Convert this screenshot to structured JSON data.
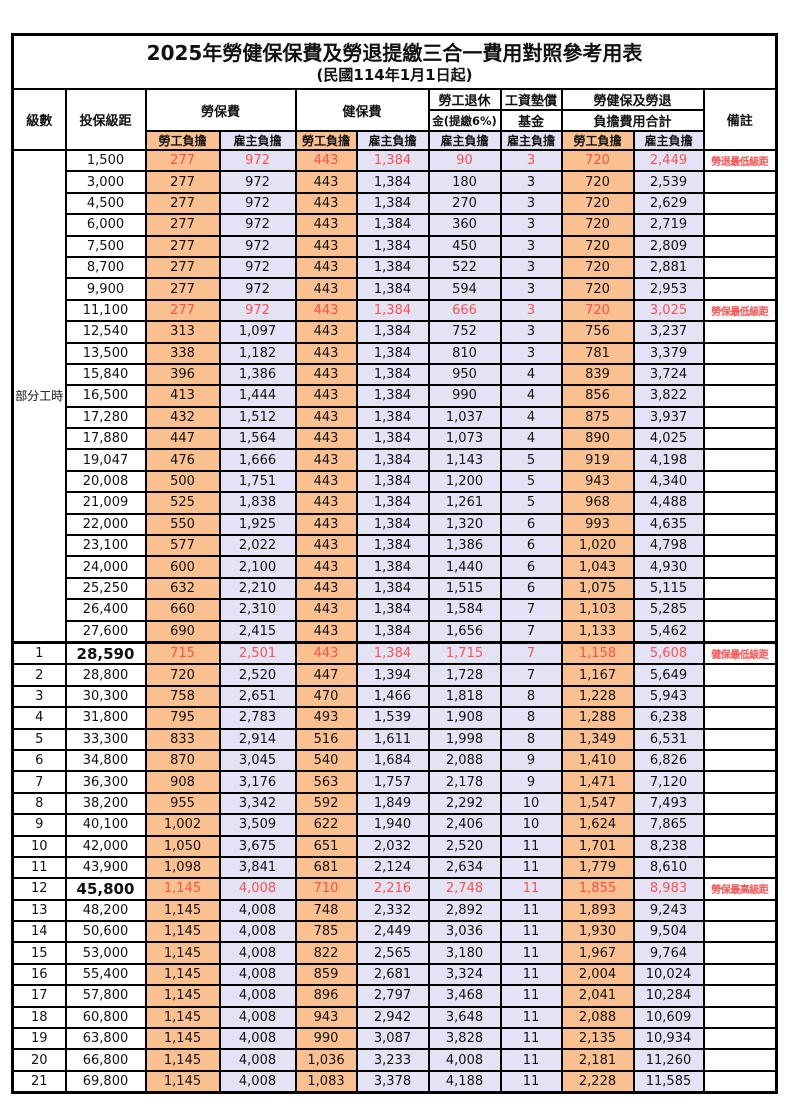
{
  "title": {
    "main": "2025年勞健保保費及勞退提繳三合一費用對照參考用表",
    "sub": "(民國114年1月1日起)"
  },
  "colors": {
    "employee_bg": "#FAC090",
    "employer_bg": "#E4E3F5",
    "highlight_text": "#FF5050",
    "border": "#000000"
  },
  "header": {
    "level": "級數",
    "bracket": "投保級距",
    "labor_fee": "勞保費",
    "health_fee": "健保費",
    "pension_line1": "勞工退休",
    "pension_line2": "金(提繳6%)",
    "wage_fund_line1": "工資墊償",
    "wage_fund_line2": "基金",
    "total_line1": "勞健保及勞退",
    "total_line2": "負擔費用合計",
    "note": "備註",
    "employee": "勞工負擔",
    "employer": "雇主負擔"
  },
  "table": {
    "part_time_label": "部分工時",
    "part_time_row_count": 23,
    "rows": [
      {
        "br": "1,500",
        "le": "277",
        "lr": "972",
        "he": "443",
        "hr": "1,384",
        "pe": "90",
        "wf": "3",
        "te": "720",
        "ter": "2,449",
        "nt": "勞退最低級距",
        "hl": true
      },
      {
        "br": "3,000",
        "le": "277",
        "lr": "972",
        "he": "443",
        "hr": "1,384",
        "pe": "180",
        "wf": "3",
        "te": "720",
        "ter": "2,539",
        "nt": ""
      },
      {
        "br": "4,500",
        "le": "277",
        "lr": "972",
        "he": "443",
        "hr": "1,384",
        "pe": "270",
        "wf": "3",
        "te": "720",
        "ter": "2,629",
        "nt": ""
      },
      {
        "br": "6,000",
        "le": "277",
        "lr": "972",
        "he": "443",
        "hr": "1,384",
        "pe": "360",
        "wf": "3",
        "te": "720",
        "ter": "2,719",
        "nt": ""
      },
      {
        "br": "7,500",
        "le": "277",
        "lr": "972",
        "he": "443",
        "hr": "1,384",
        "pe": "450",
        "wf": "3",
        "te": "720",
        "ter": "2,809",
        "nt": ""
      },
      {
        "br": "8,700",
        "le": "277",
        "lr": "972",
        "he": "443",
        "hr": "1,384",
        "pe": "522",
        "wf": "3",
        "te": "720",
        "ter": "2,881",
        "nt": ""
      },
      {
        "br": "9,900",
        "le": "277",
        "lr": "972",
        "he": "443",
        "hr": "1,384",
        "pe": "594",
        "wf": "3",
        "te": "720",
        "ter": "2,953",
        "nt": ""
      },
      {
        "br": "11,100",
        "le": "277",
        "lr": "972",
        "he": "443",
        "hr": "1,384",
        "pe": "666",
        "wf": "3",
        "te": "720",
        "ter": "3,025",
        "nt": "勞保最低級距",
        "hl": true
      },
      {
        "br": "12,540",
        "le": "313",
        "lr": "1,097",
        "he": "443",
        "hr": "1,384",
        "pe": "752",
        "wf": "3",
        "te": "756",
        "ter": "3,237",
        "nt": ""
      },
      {
        "br": "13,500",
        "le": "338",
        "lr": "1,182",
        "he": "443",
        "hr": "1,384",
        "pe": "810",
        "wf": "3",
        "te": "781",
        "ter": "3,379",
        "nt": ""
      },
      {
        "br": "15,840",
        "le": "396",
        "lr": "1,386",
        "he": "443",
        "hr": "1,384",
        "pe": "950",
        "wf": "4",
        "te": "839",
        "ter": "3,724",
        "nt": ""
      },
      {
        "br": "16,500",
        "le": "413",
        "lr": "1,444",
        "he": "443",
        "hr": "1,384",
        "pe": "990",
        "wf": "4",
        "te": "856",
        "ter": "3,822",
        "nt": ""
      },
      {
        "br": "17,280",
        "le": "432",
        "lr": "1,512",
        "he": "443",
        "hr": "1,384",
        "pe": "1,037",
        "wf": "4",
        "te": "875",
        "ter": "3,937",
        "nt": ""
      },
      {
        "br": "17,880",
        "le": "447",
        "lr": "1,564",
        "he": "443",
        "hr": "1,384",
        "pe": "1,073",
        "wf": "4",
        "te": "890",
        "ter": "4,025",
        "nt": ""
      },
      {
        "br": "19,047",
        "le": "476",
        "lr": "1,666",
        "he": "443",
        "hr": "1,384",
        "pe": "1,143",
        "wf": "5",
        "te": "919",
        "ter": "4,198",
        "nt": ""
      },
      {
        "br": "20,008",
        "le": "500",
        "lr": "1,751",
        "he": "443",
        "hr": "1,384",
        "pe": "1,200",
        "wf": "5",
        "te": "943",
        "ter": "4,340",
        "nt": ""
      },
      {
        "br": "21,009",
        "le": "525",
        "lr": "1,838",
        "he": "443",
        "hr": "1,384",
        "pe": "1,261",
        "wf": "5",
        "te": "968",
        "ter": "4,488",
        "nt": ""
      },
      {
        "br": "22,000",
        "le": "550",
        "lr": "1,925",
        "he": "443",
        "hr": "1,384",
        "pe": "1,320",
        "wf": "6",
        "te": "993",
        "ter": "4,635",
        "nt": ""
      },
      {
        "br": "23,100",
        "le": "577",
        "lr": "2,022",
        "he": "443",
        "hr": "1,384",
        "pe": "1,386",
        "wf": "6",
        "te": "1,020",
        "ter": "4,798",
        "nt": ""
      },
      {
        "br": "24,000",
        "le": "600",
        "lr": "2,100",
        "he": "443",
        "hr": "1,384",
        "pe": "1,440",
        "wf": "6",
        "te": "1,043",
        "ter": "4,930",
        "nt": ""
      },
      {
        "br": "25,250",
        "le": "632",
        "lr": "2,210",
        "he": "443",
        "hr": "1,384",
        "pe": "1,515",
        "wf": "6",
        "te": "1,075",
        "ter": "5,115",
        "nt": ""
      },
      {
        "br": "26,400",
        "le": "660",
        "lr": "2,310",
        "he": "443",
        "hr": "1,384",
        "pe": "1,584",
        "wf": "7",
        "te": "1,103",
        "ter": "5,285",
        "nt": ""
      },
      {
        "br": "27,600",
        "le": "690",
        "lr": "2,415",
        "he": "443",
        "hr": "1,384",
        "pe": "1,656",
        "wf": "7",
        "te": "1,133",
        "ter": "5,462",
        "nt": ""
      },
      {
        "lv": "1",
        "br": "28,590",
        "le": "715",
        "lr": "2,501",
        "he": "443",
        "hr": "1,384",
        "pe": "1,715",
        "wf": "7",
        "te": "1,158",
        "ter": "5,608",
        "nt": "健保最低級距",
        "hl": true,
        "bb": true,
        "sb": true
      },
      {
        "lv": "2",
        "br": "28,800",
        "le": "720",
        "lr": "2,520",
        "he": "447",
        "hr": "1,394",
        "pe": "1,728",
        "wf": "7",
        "te": "1,167",
        "ter": "5,649",
        "nt": ""
      },
      {
        "lv": "3",
        "br": "30,300",
        "le": "758",
        "lr": "2,651",
        "he": "470",
        "hr": "1,466",
        "pe": "1,818",
        "wf": "8",
        "te": "1,228",
        "ter": "5,943",
        "nt": ""
      },
      {
        "lv": "4",
        "br": "31,800",
        "le": "795",
        "lr": "2,783",
        "he": "493",
        "hr": "1,539",
        "pe": "1,908",
        "wf": "8",
        "te": "1,288",
        "ter": "6,238",
        "nt": ""
      },
      {
        "lv": "5",
        "br": "33,300",
        "le": "833",
        "lr": "2,914",
        "he": "516",
        "hr": "1,611",
        "pe": "1,998",
        "wf": "8",
        "te": "1,349",
        "ter": "6,531",
        "nt": ""
      },
      {
        "lv": "6",
        "br": "34,800",
        "le": "870",
        "lr": "3,045",
        "he": "540",
        "hr": "1,684",
        "pe": "2,088",
        "wf": "9",
        "te": "1,410",
        "ter": "6,826",
        "nt": ""
      },
      {
        "lv": "7",
        "br": "36,300",
        "le": "908",
        "lr": "3,176",
        "he": "563",
        "hr": "1,757",
        "pe": "2,178",
        "wf": "9",
        "te": "1,471",
        "ter": "7,120",
        "nt": ""
      },
      {
        "lv": "8",
        "br": "38,200",
        "le": "955",
        "lr": "3,342",
        "he": "592",
        "hr": "1,849",
        "pe": "2,292",
        "wf": "10",
        "te": "1,547",
        "ter": "7,493",
        "nt": ""
      },
      {
        "lv": "9",
        "br": "40,100",
        "le": "1,002",
        "lr": "3,509",
        "he": "622",
        "hr": "1,940",
        "pe": "2,406",
        "wf": "10",
        "te": "1,624",
        "ter": "7,865",
        "nt": ""
      },
      {
        "lv": "10",
        "br": "42,000",
        "le": "1,050",
        "lr": "3,675",
        "he": "651",
        "hr": "2,032",
        "pe": "2,520",
        "wf": "11",
        "te": "1,701",
        "ter": "8,238",
        "nt": ""
      },
      {
        "lv": "11",
        "br": "43,900",
        "le": "1,098",
        "lr": "3,841",
        "he": "681",
        "hr": "2,124",
        "pe": "2,634",
        "wf": "11",
        "te": "1,779",
        "ter": "8,610",
        "nt": ""
      },
      {
        "lv": "12",
        "br": "45,800",
        "le": "1,145",
        "lr": "4,008",
        "he": "710",
        "hr": "2,216",
        "pe": "2,748",
        "wf": "11",
        "te": "1,855",
        "ter": "8,983",
        "nt": "勞保最高級距",
        "hl": true,
        "bb": true
      },
      {
        "lv": "13",
        "br": "48,200",
        "le": "1,145",
        "lr": "4,008",
        "he": "748",
        "hr": "2,332",
        "pe": "2,892",
        "wf": "11",
        "te": "1,893",
        "ter": "9,243",
        "nt": ""
      },
      {
        "lv": "14",
        "br": "50,600",
        "le": "1,145",
        "lr": "4,008",
        "he": "785",
        "hr": "2,449",
        "pe": "3,036",
        "wf": "11",
        "te": "1,930",
        "ter": "9,504",
        "nt": ""
      },
      {
        "lv": "15",
        "br": "53,000",
        "le": "1,145",
        "lr": "4,008",
        "he": "822",
        "hr": "2,565",
        "pe": "3,180",
        "wf": "11",
        "te": "1,967",
        "ter": "9,764",
        "nt": ""
      },
      {
        "lv": "16",
        "br": "55,400",
        "le": "1,145",
        "lr": "4,008",
        "he": "859",
        "hr": "2,681",
        "pe": "3,324",
        "wf": "11",
        "te": "2,004",
        "ter": "10,024",
        "nt": ""
      },
      {
        "lv": "17",
        "br": "57,800",
        "le": "1,145",
        "lr": "4,008",
        "he": "896",
        "hr": "2,797",
        "pe": "3,468",
        "wf": "11",
        "te": "2,041",
        "ter": "10,284",
        "nt": ""
      },
      {
        "lv": "18",
        "br": "60,800",
        "le": "1,145",
        "lr": "4,008",
        "he": "943",
        "hr": "2,942",
        "pe": "3,648",
        "wf": "11",
        "te": "2,088",
        "ter": "10,609",
        "nt": ""
      },
      {
        "lv": "19",
        "br": "63,800",
        "le": "1,145",
        "lr": "4,008",
        "he": "990",
        "hr": "3,087",
        "pe": "3,828",
        "wf": "11",
        "te": "2,135",
        "ter": "10,934",
        "nt": ""
      },
      {
        "lv": "20",
        "br": "66,800",
        "le": "1,145",
        "lr": "4,008",
        "he": "1,036",
        "hr": "3,233",
        "pe": "4,008",
        "wf": "11",
        "te": "2,181",
        "ter": "11,260",
        "nt": ""
      },
      {
        "lv": "21",
        "br": "69,800",
        "le": "1,145",
        "lr": "4,008",
        "he": "1,083",
        "hr": "3,378",
        "pe": "4,188",
        "wf": "11",
        "te": "2,228",
        "ter": "11,585",
        "nt": ""
      }
    ]
  }
}
